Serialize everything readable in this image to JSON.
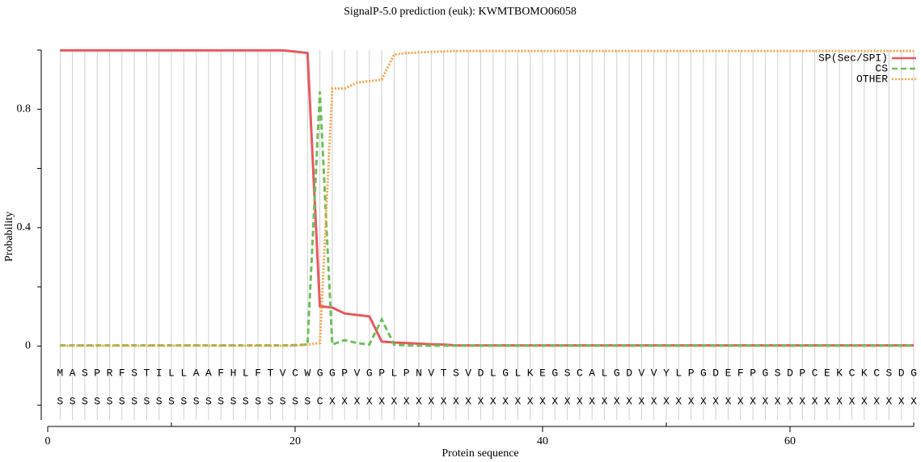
{
  "chart_data": {
    "type": "line",
    "title": "SignalP-5.0 prediction (euk):  KWMTBOMO06058",
    "x_label": "Protein sequence",
    "y_label": "Probability",
    "xlim": [
      0,
      70
    ],
    "ylim": [
      -0.25,
      1.0
    ],
    "xticks": [
      0,
      20,
      40,
      60
    ],
    "xticks_minor": [
      10,
      30,
      50,
      70
    ],
    "yticks": [
      0,
      0.4,
      0.8
    ],
    "yticks_minor": [
      -0.2,
      0.2,
      0.6,
      1.0
    ],
    "grid": true,
    "legend": "upper right",
    "x": [
      1,
      2,
      3,
      4,
      5,
      6,
      7,
      8,
      9,
      10,
      11,
      12,
      13,
      14,
      15,
      16,
      17,
      18,
      19,
      20,
      21,
      22,
      23,
      24,
      25,
      26,
      27,
      28,
      29,
      30,
      31,
      32,
      33,
      34,
      35,
      36,
      37,
      38,
      39,
      40,
      41,
      42,
      43,
      44,
      45,
      46,
      47,
      48,
      49,
      50,
      51,
      52,
      53,
      54,
      55,
      56,
      57,
      58,
      59,
      60,
      61,
      62,
      63,
      64,
      65,
      66,
      67,
      68,
      69,
      70
    ],
    "sequence": [
      "M",
      "A",
      "S",
      "P",
      "R",
      "F",
      "S",
      "T",
      "I",
      "L",
      "L",
      "A",
      "A",
      "F",
      "H",
      "L",
      "F",
      "T",
      "V",
      "C",
      "W",
      "G",
      "G",
      "P",
      "V",
      "G",
      "P",
      "L",
      "P",
      "N",
      "V",
      "T",
      "S",
      "V",
      "D",
      "L",
      "G",
      "L",
      "K",
      "E",
      "G",
      "S",
      "C",
      "A",
      "L",
      "G",
      "D",
      "V",
      "V",
      "Y",
      "L",
      "P",
      "G",
      "D",
      "E",
      "F",
      "P",
      "G",
      "S",
      "D",
      "P",
      "C",
      "E",
      "K",
      "C",
      "K",
      "C",
      "S",
      "D",
      "G"
    ],
    "labels": [
      "S",
      "S",
      "S",
      "S",
      "S",
      "S",
      "S",
      "S",
      "S",
      "S",
      "S",
      "S",
      "S",
      "S",
      "S",
      "S",
      "S",
      "S",
      "S",
      "S",
      "S",
      "C",
      "X",
      "X",
      "X",
      "X",
      "X",
      "X",
      "X",
      "X",
      "X",
      "X",
      "X",
      "X",
      "X",
      "X",
      "X",
      "X",
      "X",
      "X",
      "X",
      "X",
      "X",
      "X",
      "X",
      "X",
      "X",
      "X",
      "X",
      "X",
      "X",
      "X",
      "X",
      "X",
      "X",
      "X",
      "X",
      "X",
      "X",
      "X",
      "X",
      "X",
      "X",
      "X",
      "X",
      "X",
      "X",
      "X",
      "X",
      "X"
    ],
    "series": [
      {
        "name": "SP(Sec/SPI)",
        "color": "#e8585e",
        "style": "solid",
        "values": [
          0.999,
          0.999,
          0.999,
          0.999,
          0.999,
          0.999,
          0.999,
          0.999,
          0.999,
          0.999,
          0.999,
          0.999,
          0.999,
          0.999,
          0.999,
          0.999,
          0.999,
          0.999,
          0.999,
          0.995,
          0.99,
          0.134,
          0.13,
          0.11,
          0.105,
          0.1,
          0.015,
          0.012,
          0.01,
          0.008,
          0.006,
          0.005,
          0.002,
          0.002,
          0.002,
          0.002,
          0.002,
          0.002,
          0.002,
          0.002,
          0.002,
          0.002,
          0.002,
          0.002,
          0.002,
          0.002,
          0.002,
          0.002,
          0.002,
          0.002,
          0.002,
          0.002,
          0.002,
          0.002,
          0.002,
          0.002,
          0.002,
          0.002,
          0.002,
          0.002,
          0.002,
          0.002,
          0.002,
          0.002,
          0.002,
          0.002,
          0.002,
          0.002,
          0.002,
          0.002
        ]
      },
      {
        "name": "CS",
        "color": "#6dbf5a",
        "style": "dashed",
        "values": [
          0.002,
          0.002,
          0.002,
          0.002,
          0.002,
          0.002,
          0.002,
          0.002,
          0.002,
          0.002,
          0.002,
          0.002,
          0.002,
          0.002,
          0.002,
          0.002,
          0.002,
          0.002,
          0.002,
          0.003,
          0.005,
          0.86,
          0.005,
          0.02,
          0.01,
          0.005,
          0.09,
          0.005,
          0.002,
          0.001,
          0.001,
          0.001,
          0.001,
          0.001,
          0.001,
          0.001,
          0.001,
          0.001,
          0.001,
          0.001,
          0.001,
          0.001,
          0.001,
          0.001,
          0.001,
          0.001,
          0.001,
          0.001,
          0.001,
          0.001,
          0.001,
          0.001,
          0.001,
          0.001,
          0.001,
          0.001,
          0.001,
          0.001,
          0.001,
          0.001,
          0.001,
          0.001,
          0.001,
          0.001,
          0.001,
          0.001,
          0.001,
          0.001,
          0.001,
          0.001
        ]
      },
      {
        "name": "OTHER",
        "color": "#f4a347",
        "style": "dotted",
        "values": [
          0.001,
          0.001,
          0.001,
          0.001,
          0.001,
          0.001,
          0.001,
          0.001,
          0.001,
          0.001,
          0.001,
          0.001,
          0.001,
          0.001,
          0.001,
          0.001,
          0.001,
          0.001,
          0.001,
          0.001,
          0.005,
          0.01,
          0.87,
          0.87,
          0.89,
          0.895,
          0.9,
          0.985,
          0.99,
          0.992,
          0.994,
          0.995,
          0.997,
          0.997,
          0.997,
          0.997,
          0.997,
          0.997,
          0.997,
          0.997,
          0.997,
          0.997,
          0.997,
          0.997,
          0.997,
          0.997,
          0.997,
          0.997,
          0.997,
          0.997,
          0.997,
          0.997,
          0.997,
          0.997,
          0.997,
          0.997,
          0.997,
          0.997,
          0.997,
          0.997,
          0.997,
          0.997,
          0.997,
          0.997,
          0.997,
          0.997,
          0.997,
          0.997,
          0.997,
          0.997
        ]
      }
    ]
  }
}
